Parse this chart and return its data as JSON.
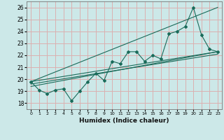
{
  "xlabel": "Humidex (Indice chaleur)",
  "bg_color": "#cce8e8",
  "grid_color": "#dbb0b0",
  "line_color": "#1a6b5a",
  "xlim": [
    -0.5,
    23.5
  ],
  "ylim": [
    17.5,
    26.5
  ],
  "yticks": [
    18,
    19,
    20,
    21,
    22,
    23,
    24,
    25,
    26
  ],
  "xticks": [
    0,
    1,
    2,
    3,
    4,
    5,
    6,
    7,
    8,
    9,
    10,
    11,
    12,
    13,
    14,
    15,
    16,
    17,
    18,
    19,
    20,
    21,
    22,
    23
  ],
  "main_x": [
    0,
    1,
    2,
    3,
    4,
    5,
    6,
    7,
    8,
    9,
    10,
    11,
    12,
    13,
    14,
    15,
    16,
    17,
    18,
    19,
    20,
    21,
    22,
    23
  ],
  "main_y": [
    19.8,
    19.1,
    18.8,
    19.1,
    19.2,
    18.2,
    19.0,
    19.8,
    20.5,
    19.9,
    21.5,
    21.3,
    22.3,
    22.3,
    21.5,
    22.0,
    21.7,
    23.8,
    24.0,
    24.4,
    26.0,
    23.7,
    22.5,
    22.3
  ],
  "line1_x": [
    0,
    23
  ],
  "line1_y": [
    19.8,
    22.3
  ],
  "line2_x": [
    0,
    23
  ],
  "line2_y": [
    19.6,
    22.1
  ],
  "line3_x": [
    0,
    23
  ],
  "line3_y": [
    19.8,
    26.0
  ],
  "line4_x": [
    0,
    23
  ],
  "line4_y": [
    19.4,
    22.3
  ]
}
